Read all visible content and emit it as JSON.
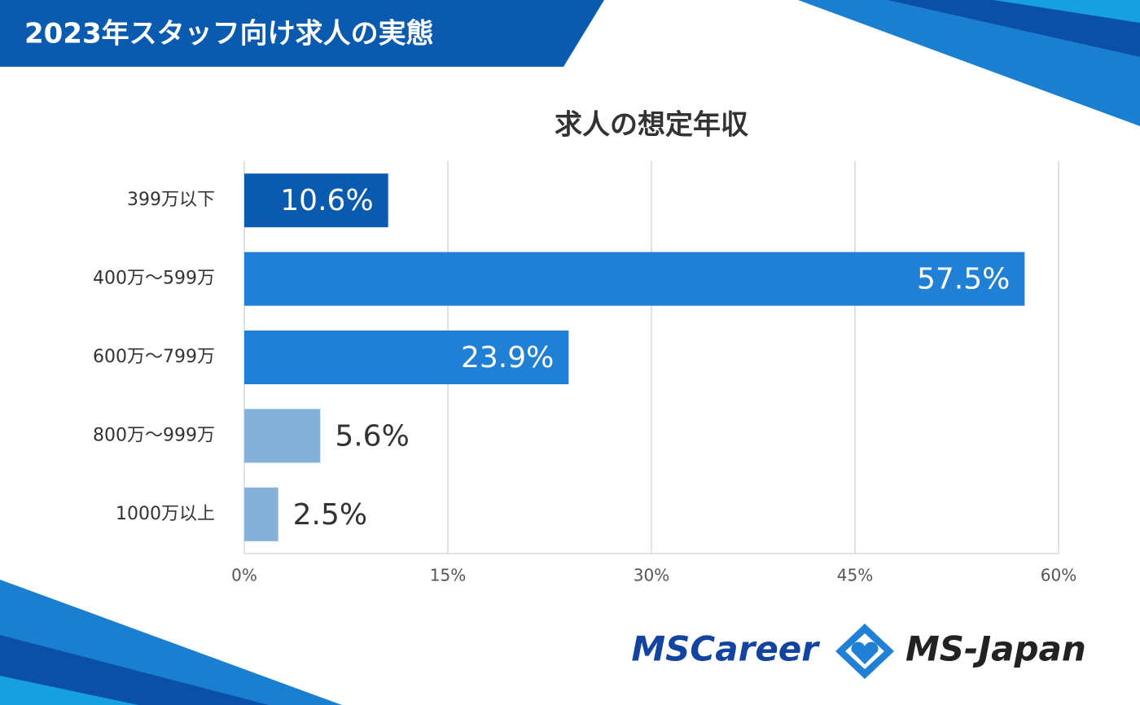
{
  "header": {
    "title": "2023年スタッフ向け求人の実態"
  },
  "chart_data": {
    "type": "bar",
    "orientation": "horizontal",
    "title": "求人の想定年収",
    "categories": [
      "399万以下",
      "400万～599万",
      "600万～799万",
      "800万～999万",
      "1000万以上"
    ],
    "values": [
      10.6,
      57.5,
      23.9,
      5.6,
      2.5
    ],
    "value_labels": [
      "10.6%",
      "57.5%",
      "23.9%",
      "5.6%",
      "2.5%"
    ],
    "colors": [
      "#0a5bb0",
      "#1f80d6",
      "#1f80d6",
      "#84b0da",
      "#84b0da"
    ],
    "xlim": [
      0,
      60
    ],
    "xticks": [
      {
        "value": 0,
        "label": "0%"
      },
      {
        "value": 15,
        "label": "15%"
      },
      {
        "value": 30,
        "label": "30%"
      },
      {
        "value": 45,
        "label": "45%"
      },
      {
        "value": 60,
        "label": "60%"
      }
    ],
    "grid": true
  },
  "logos": {
    "left": "MSCareer",
    "right": "MS-Japan"
  }
}
